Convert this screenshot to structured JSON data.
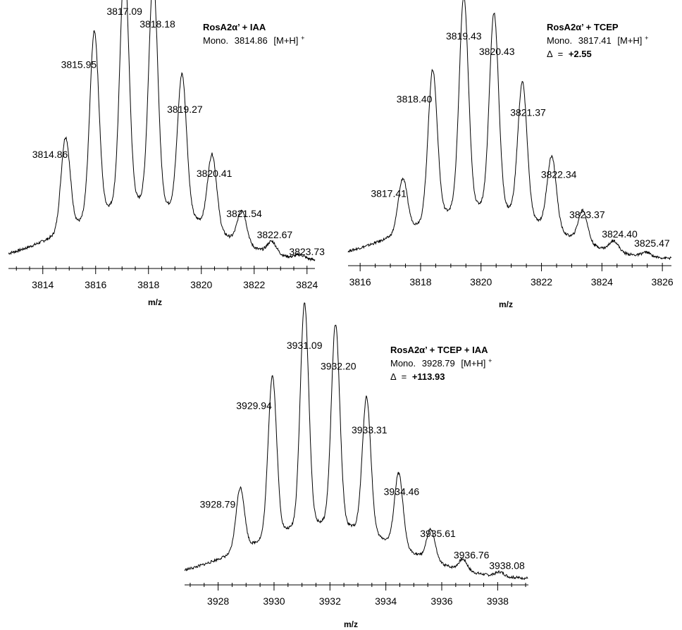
{
  "chart_data": [
    {
      "type": "line",
      "xlabel": "m/z",
      "xlim": [
        3812.7,
        3824.3
      ],
      "x_ticks": [
        "3814",
        "3816",
        "3818",
        "3820",
        "3822",
        "3824"
      ],
      "annotation": {
        "title": "RosA2α’ + IAA",
        "mono_label": "Mono.",
        "mono_value": "3814.86",
        "ion": "[M+H]",
        "ion_charge": "+"
      },
      "peaks": [
        {
          "mz": 3814.86,
          "label": "3814.86",
          "rel": 0.39
        },
        {
          "mz": 3815.95,
          "label": "3815.95",
          "rel": 0.77
        },
        {
          "mz": 3817.09,
          "label": "3817.09",
          "rel": 1.0
        },
        {
          "mz": 3818.18,
          "label": "3818.18",
          "rel": 0.94
        },
        {
          "mz": 3819.27,
          "label": "3819.27",
          "rel": 0.58
        },
        {
          "mz": 3820.41,
          "label": "3820.41",
          "rel": 0.31
        },
        {
          "mz": 3821.54,
          "label": "3821.54",
          "rel": 0.14
        },
        {
          "mz": 3822.67,
          "label": "3822.67",
          "rel": 0.05
        },
        {
          "mz": 3823.73,
          "label": "3823.73",
          "rel": 0.015
        }
      ]
    },
    {
      "type": "line",
      "xlabel": "m/z",
      "xlim": [
        3815.6,
        3826.3
      ],
      "x_ticks": [
        "3816",
        "3818",
        "3820",
        "3822",
        "3824",
        "3826"
      ],
      "annotation": {
        "title": "RosA2α’ + TCEP",
        "mono_label": "Mono.",
        "mono_value": "3817.41",
        "ion": "[M+H]",
        "ion_charge": "+",
        "delta_symbol": "Δ",
        "delta_eq": "=",
        "delta_value": "+2.55"
      },
      "peaks": [
        {
          "mz": 3817.41,
          "label": "3817.41",
          "rel": 0.25
        },
        {
          "mz": 3818.4,
          "label": "3818.40",
          "rel": 0.7
        },
        {
          "mz": 3819.43,
          "label": "3819.43",
          "rel": 1.0
        },
        {
          "mz": 3820.43,
          "label": "3820.43",
          "rel": 0.92
        },
        {
          "mz": 3821.37,
          "label": "3821.37",
          "rel": 0.63
        },
        {
          "mz": 3822.34,
          "label": "3822.34",
          "rel": 0.34
        },
        {
          "mz": 3823.37,
          "label": "3823.37",
          "rel": 0.15
        },
        {
          "mz": 3824.4,
          "label": "3824.40",
          "rel": 0.05
        },
        {
          "mz": 3825.47,
          "label": "3825.47",
          "rel": 0.02
        }
      ]
    },
    {
      "type": "line",
      "xlabel": "m/z",
      "xlim": [
        3926.8,
        3939.1
      ],
      "x_ticks": [
        "3928",
        "3930",
        "3932",
        "3934",
        "3936",
        "3938"
      ],
      "annotation": {
        "title": "RosA2α’ + TCEP + IAA",
        "mono_label": "Mono.",
        "mono_value": "3928.79",
        "ion": "[M+H]",
        "ion_charge": "+",
        "delta_symbol": "Δ",
        "delta_eq": "=",
        "delta_value": "+113.93"
      },
      "peaks": [
        {
          "mz": 3928.79,
          "label": "3928.79",
          "rel": 0.28
        },
        {
          "mz": 3929.94,
          "label": "3929.94",
          "rel": 0.72
        },
        {
          "mz": 3931.09,
          "label": "3931.09",
          "rel": 1.0
        },
        {
          "mz": 3932.2,
          "label": "3932.20",
          "rel": 0.9
        },
        {
          "mz": 3933.31,
          "label": "3933.31",
          "rel": 0.61
        },
        {
          "mz": 3934.46,
          "label": "3934.46",
          "rel": 0.33
        },
        {
          "mz": 3935.61,
          "label": "3935.61",
          "rel": 0.14
        },
        {
          "mz": 3936.76,
          "label": "3936.76",
          "rel": 0.05
        },
        {
          "mz": 3938.08,
          "label": "3938.08",
          "rel": 0.02
        }
      ]
    }
  ]
}
